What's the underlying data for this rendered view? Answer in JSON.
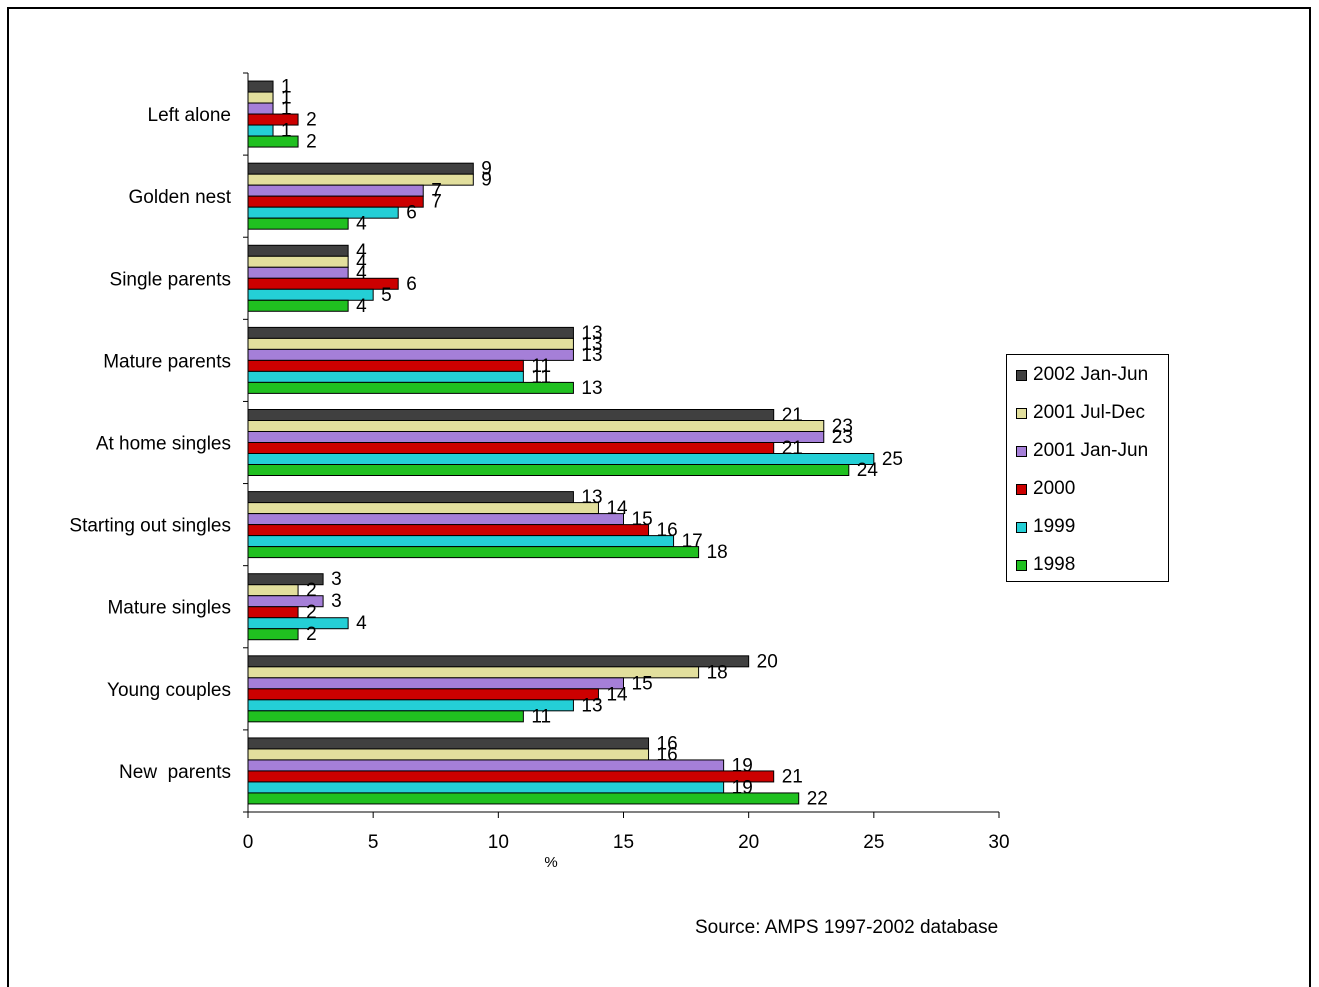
{
  "chart_data": {
    "type": "bar",
    "orientation": "horizontal",
    "categories": [
      "Left alone",
      "Golden nest",
      "Single parents",
      "Mature parents",
      "At home singles",
      "Starting out singles",
      "Mature singles",
      "Young couples",
      "New  parents"
    ],
    "series": [
      {
        "name": "2002 Jan-Jun",
        "color": "#404040",
        "values": [
          1,
          9,
          4,
          13,
          21,
          13,
          3,
          20,
          16
        ]
      },
      {
        "name": "2001 Jul-Dec",
        "color": "#e2df9d",
        "values": [
          1,
          9,
          4,
          13,
          23,
          14,
          2,
          18,
          16
        ]
      },
      {
        "name": "2001 Jan-Jun",
        "color": "#a57fd8",
        "values": [
          1,
          7,
          4,
          13,
          23,
          15,
          3,
          15,
          19
        ]
      },
      {
        "name": "2000",
        "color": "#cc0000",
        "values": [
          2,
          7,
          6,
          11,
          21,
          16,
          2,
          14,
          21
        ]
      },
      {
        "name": "1999",
        "color": "#24cfd6",
        "values": [
          1,
          6,
          5,
          11,
          25,
          17,
          4,
          13,
          19
        ]
      },
      {
        "name": "1998",
        "color": "#20c020",
        "values": [
          2,
          4,
          4,
          13,
          24,
          18,
          2,
          11,
          22
        ]
      }
    ],
    "xlabel": "%",
    "xlim": [
      0,
      30
    ],
    "xticks": [
      0,
      5,
      10,
      15,
      20,
      25,
      30
    ],
    "grid": false,
    "legend_position": "right"
  },
  "source": "Source:  AMPS 1997-2002 database"
}
